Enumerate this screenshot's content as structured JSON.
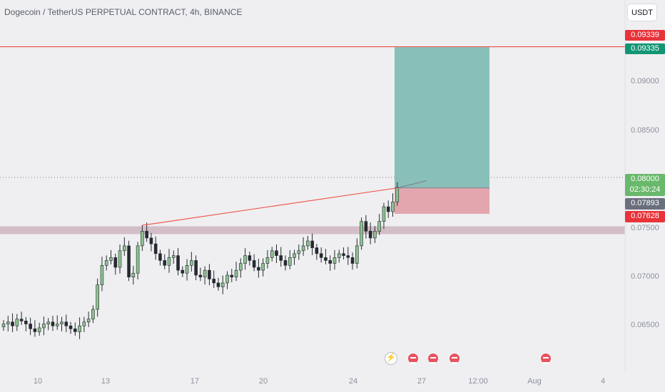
{
  "header": {
    "title": "Dogecoin / TetherUS PERPETUAL CONTRACT, 4h, BINANCE"
  },
  "currency_button": "USDT",
  "price_axis": {
    "ticks": [
      "0.09000",
      "0.08500",
      "0.07500",
      "0.07000",
      "0.06500"
    ]
  },
  "price_labels": {
    "target_red": "0.09339",
    "target_green": "0.09335",
    "current_price": "0.08000",
    "countdown": "02:30:24",
    "entry": "0.07893",
    "stop": "0.07628"
  },
  "time_axis": {
    "labels": [
      "10",
      "13",
      "17",
      "20",
      "24",
      "27",
      "12:00",
      "Aug",
      "4"
    ]
  },
  "events": [
    {
      "icon": "lightning-icon"
    },
    {
      "icon": "us-flag-icon"
    },
    {
      "icon": "us-flag-icon"
    },
    {
      "icon": "us-flag-icon"
    },
    {
      "icon": "us-flag-icon"
    }
  ],
  "colors": {
    "bull": "#8cc28e",
    "bear": "#262a30",
    "profit_zone": "#89bfb9",
    "loss_zone": "#e3a6ae",
    "support_band": "#c8a9b6",
    "trendline": "#f05a4f",
    "target_line": "#ef4b42"
  },
  "chart_data": {
    "type": "candlestick",
    "symbol": "Dogecoin / TetherUS PERPETUAL CONTRACT",
    "interval": "4h",
    "exchange": "BINANCE",
    "y_range": [
      0.062,
      0.0965
    ],
    "closes": [
      0.065,
      0.0652,
      0.0648,
      0.0655,
      0.0653,
      0.065,
      0.0645,
      0.0642,
      0.0646,
      0.065,
      0.0652,
      0.0648,
      0.065,
      0.0652,
      0.0648,
      0.0645,
      0.0642,
      0.0648,
      0.0652,
      0.0655,
      0.0665,
      0.069,
      0.071,
      0.0715,
      0.0718,
      0.0708,
      0.0725,
      0.073,
      0.0698,
      0.0702,
      0.073,
      0.0745,
      0.0738,
      0.0732,
      0.0722,
      0.0715,
      0.071,
      0.0718,
      0.072,
      0.0705,
      0.0702,
      0.071,
      0.0715,
      0.07,
      0.0698,
      0.0705,
      0.0696,
      0.0692,
      0.0688,
      0.0692,
      0.07,
      0.0698,
      0.0705,
      0.0712,
      0.072,
      0.0715,
      0.0708,
      0.0705,
      0.0712,
      0.0718,
      0.0725,
      0.072,
      0.0715,
      0.071,
      0.0718,
      0.0722,
      0.0725,
      0.073,
      0.0735,
      0.0728,
      0.0722,
      0.0718,
      0.0715,
      0.0712,
      0.0718,
      0.0722,
      0.072,
      0.0718,
      0.0712,
      0.073,
      0.0755,
      0.0745,
      0.0738,
      0.0745,
      0.0755,
      0.077,
      0.0765,
      0.0775,
      0.079
    ],
    "horizontal_levels": [
      0.09339,
      0.08
    ],
    "support_zone": [
      0.0742,
      0.075
    ],
    "trendline": [
      {
        "x_index": 31,
        "price": 0.0751
      },
      {
        "x_index": 88,
        "price": 0.07893
      }
    ],
    "long_position": {
      "entry": 0.07893,
      "target": 0.09335,
      "stop": 0.07628
    }
  }
}
